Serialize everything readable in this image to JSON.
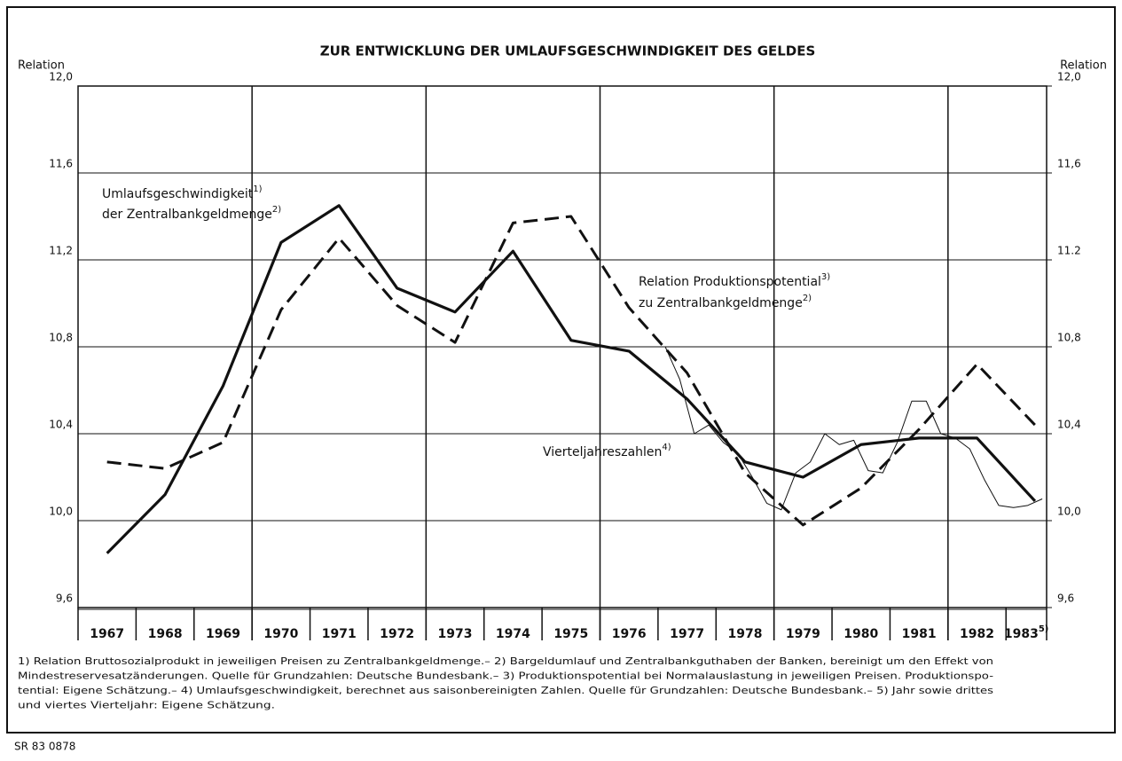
{
  "chart_data": {
    "type": "line",
    "title": "ZUR ENTWICKLUNG DER UMLAUFSGESCHWINDIGKEIT DES GELDES",
    "y_label": "Relation",
    "y2_label": "Relation",
    "categories": [
      "1967",
      "1968",
      "1969",
      "1970",
      "1971",
      "1972",
      "1973",
      "1974",
      "1975",
      "1976",
      "1977",
      "1978",
      "1979",
      "1980",
      "1981",
      "1982",
      "1983"
    ],
    "category_notes": [
      null,
      null,
      null,
      null,
      null,
      null,
      null,
      null,
      null,
      null,
      null,
      null,
      null,
      null,
      null,
      null,
      "5)"
    ],
    "xlim": [
      1967,
      1983.7
    ],
    "xticks": [
      1970,
      1973,
      1976,
      1979,
      1982
    ],
    "ylim": [
      9.6,
      12.0
    ],
    "yticks": [
      {
        "value": 9.6,
        "label": "9,6"
      },
      {
        "value": 10.0,
        "label": "10,0"
      },
      {
        "value": 10.4,
        "label": "10,4"
      },
      {
        "value": 10.8,
        "label": "10,8"
      },
      {
        "value": 11.2,
        "label": "11,2"
      },
      {
        "value": 11.6,
        "label": "11,6"
      },
      {
        "value": 12.0,
        "label": "12,0"
      }
    ],
    "y2lim": [
      9.6,
      12.0
    ],
    "y2ticks": [
      {
        "value": 9.6,
        "label": "9,6"
      },
      {
        "value": 10.0,
        "label": "10,0"
      },
      {
        "value": 10.4,
        "label": "10,4"
      },
      {
        "value": 10.8,
        "label": "10,8"
      },
      {
        "value": 11.2,
        "label": "11.2"
      },
      {
        "value": 11.6,
        "label": "11,6"
      },
      {
        "value": 12.0,
        "label": "12,0"
      }
    ],
    "grid": true,
    "series": [
      {
        "color": "#111111",
        "line_style": "solid",
        "x": [
          1967.5,
          1968.5,
          1969.5,
          1970.5,
          1971.5,
          1972.5,
          1973.5,
          1974.5,
          1975.5,
          1976.5,
          1977.5,
          1978.5,
          1979.5,
          1980.5,
          1981.5,
          1982.5,
          1983.5
        ],
        "values": [
          9.85,
          10.12,
          10.62,
          11.28,
          11.45,
          11.07,
          10.96,
          11.24,
          10.83,
          10.78,
          10.56,
          10.27,
          10.2,
          10.35,
          10.38,
          10.38,
          10.09
        ]
      },
      {
        "color": "#111111",
        "line_style": "dashed",
        "x": [
          1967.5,
          1968.5,
          1969.5,
          1970.5,
          1971.5,
          1972.5,
          1973.5,
          1974.5,
          1975.5,
          1976.5,
          1977.5,
          1978.5,
          1979.5,
          1980.5,
          1981.5,
          1982.5,
          1983.5
        ],
        "values": [
          10.27,
          10.24,
          10.36,
          10.97,
          11.3,
          10.99,
          10.82,
          11.37,
          11.4,
          10.98,
          10.68,
          10.22,
          9.98,
          10.15,
          10.42,
          10.72,
          10.44
        ]
      },
      {
        "color": "#111111",
        "line_style": "thin",
        "x": [
          1977.125,
          1977.375,
          1977.625,
          1977.875,
          1978.125,
          1978.375,
          1978.625,
          1978.875,
          1979.125,
          1979.375,
          1979.625,
          1979.875,
          1980.125,
          1980.375,
          1980.625,
          1980.875,
          1981.125,
          1981.375,
          1981.625,
          1981.875,
          1982.125,
          1982.375,
          1982.625,
          1982.875,
          1983.125,
          1983.375,
          1983.625
        ],
        "values": [
          10.8,
          10.65,
          10.4,
          10.44,
          10.36,
          10.31,
          10.2,
          10.08,
          10.05,
          10.22,
          10.27,
          10.4,
          10.35,
          10.37,
          10.23,
          10.22,
          10.36,
          10.55,
          10.55,
          10.4,
          10.38,
          10.33,
          10.19,
          10.07,
          10.06,
          10.07,
          10.1
        ]
      }
    ],
    "annotations": [
      [
        {
          "text": "Umlaufsgeschwindigkeit",
          "sup": "1)"
        },
        {
          "text": "der Zentralbankgeldmenge",
          "sup": "2)"
        }
      ],
      [
        {
          "text": "Relation Produktionspotential",
          "sup": "3)"
        },
        {
          "text": "zu Zentralbankgeldmenge",
          "sup": "2)"
        }
      ],
      [
        {
          "text": "Vierteljahreszahlen",
          "sup": "4)"
        }
      ]
    ],
    "footnotes": [
      "1) Relation Bruttosozialprodukt in jeweiligen Preisen zu Zentralbankgeldmenge.– 2) Bargeldumlauf und Zentralbankguthaben der Banken, bereinigt um den Effekt von",
      "Mindestreservesatzänderungen. Quelle für Grundzahlen: Deutsche Bundesbank.– 3) Produktionspotential bei Normalauslastung in jeweiligen Preisen. Produktionspo-",
      "tential: Eigene Schätzung.– 4) Umlaufsgeschwindigkeit, berechnet aus saisonbereinigten Zahlen. Quelle für Grundzahlen: Deutsche Bundesbank.– 5) Jahr sowie drittes",
      "und viertes Vierteljahr: Eigene Schätzung."
    ],
    "source_code": "SR 83 0878"
  }
}
